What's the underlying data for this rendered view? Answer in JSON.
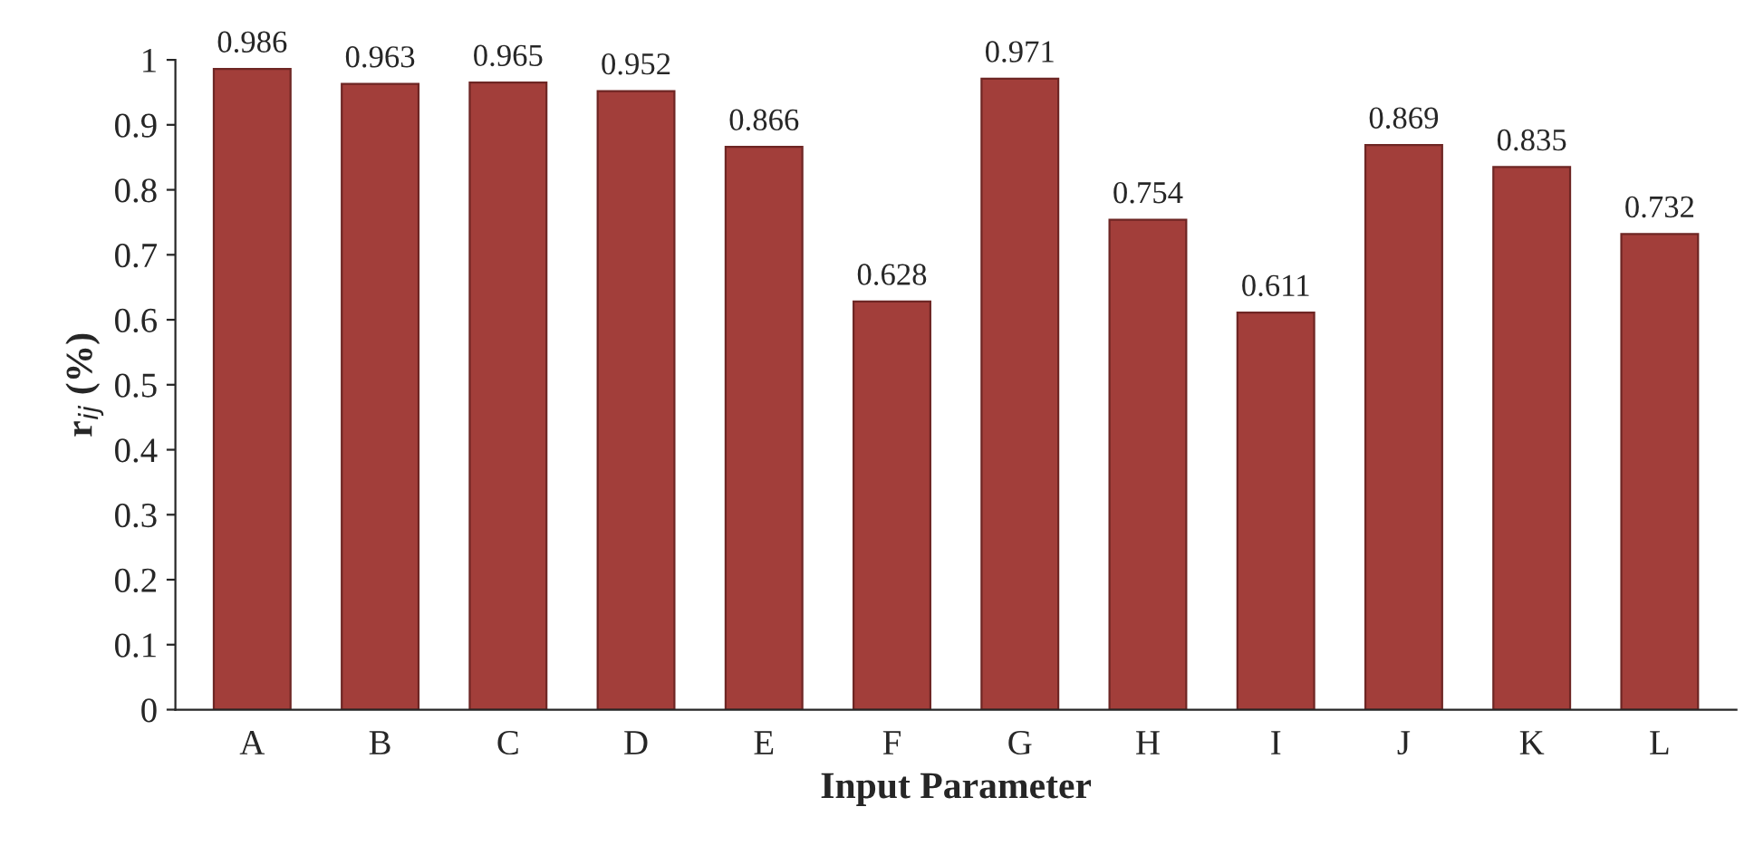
{
  "chart_data": {
    "type": "bar",
    "xlabel": "Input Parameter",
    "ylabel": "r$_{ij}$ (%)",
    "categories": [
      "A",
      "B",
      "C",
      "D",
      "E",
      "F",
      "G",
      "H",
      "I",
      "J",
      "K",
      "L"
    ],
    "values": [
      0.986,
      0.963,
      0.965,
      0.952,
      0.866,
      0.628,
      0.971,
      0.754,
      0.611,
      0.869,
      0.835,
      0.732
    ],
    "color": "#a23e3a",
    "ylim": [
      0,
      1
    ],
    "yticks": [
      0,
      0.1,
      0.2,
      0.3,
      0.4,
      0.5,
      0.6,
      0.7,
      0.8,
      0.9,
      1
    ],
    "grid": false,
    "data_labels": true
  }
}
